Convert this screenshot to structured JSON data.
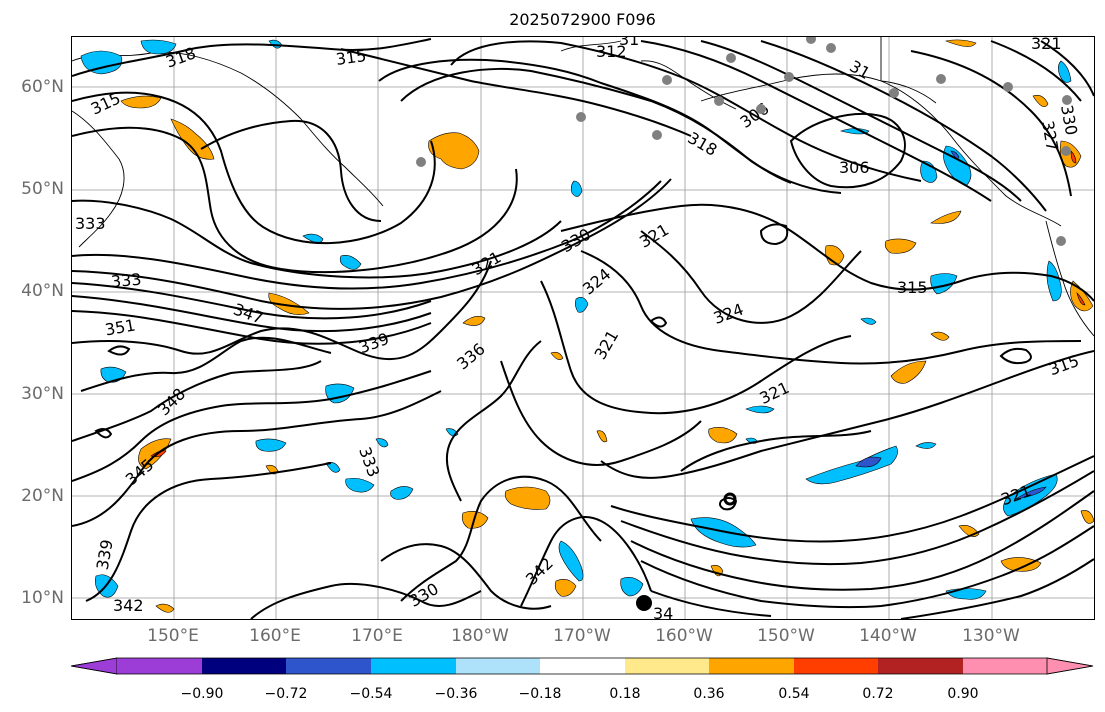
{
  "map": {
    "title": "2025072900 F096",
    "lat_labels": [
      "60°N",
      "50°N",
      "40°N",
      "30°N",
      "20°N",
      "10°N"
    ],
    "lon_labels": [
      "150°E",
      "160°E",
      "170°E",
      "180°W",
      "170°W",
      "160°W",
      "150°W",
      "140°W",
      "130°W"
    ],
    "contour_labels": [
      "318",
      "315",
      "315",
      "312",
      "306",
      "306",
      "318",
      "321",
      "327",
      "330",
      "333",
      "321",
      "330",
      "324",
      "321",
      "324",
      "315",
      "321",
      "321",
      "315",
      "333",
      "347",
      "351",
      "339",
      "336",
      "348",
      "345",
      "333",
      "339",
      "342",
      "330",
      "342",
      "34",
      "321",
      "31",
      "31"
    ],
    "colorbar": {
      "tick_labels": [
        "−0.90",
        "−0.72",
        "−0.54",
        "−0.36",
        "−0.18",
        "0.18",
        "0.36",
        "0.54",
        "0.72",
        "0.90"
      ],
      "colors": [
        "#9b3dd6",
        "#00007f",
        "#2e55cc",
        "#00bfff",
        "#aee1fa",
        "#ffffff",
        "#ffe98a",
        "#ffa500",
        "#ff3e00",
        "#b22222",
        "#ff8fb0"
      ]
    },
    "fill_colors": {
      "negative_light": "#00bfff",
      "negative_dark": "#2e55cc",
      "positive_light": "#ffa500",
      "positive_dark": "#ff3e00"
    },
    "dot_colors": {
      "gray": "#808080",
      "black": "#000000"
    }
  }
}
